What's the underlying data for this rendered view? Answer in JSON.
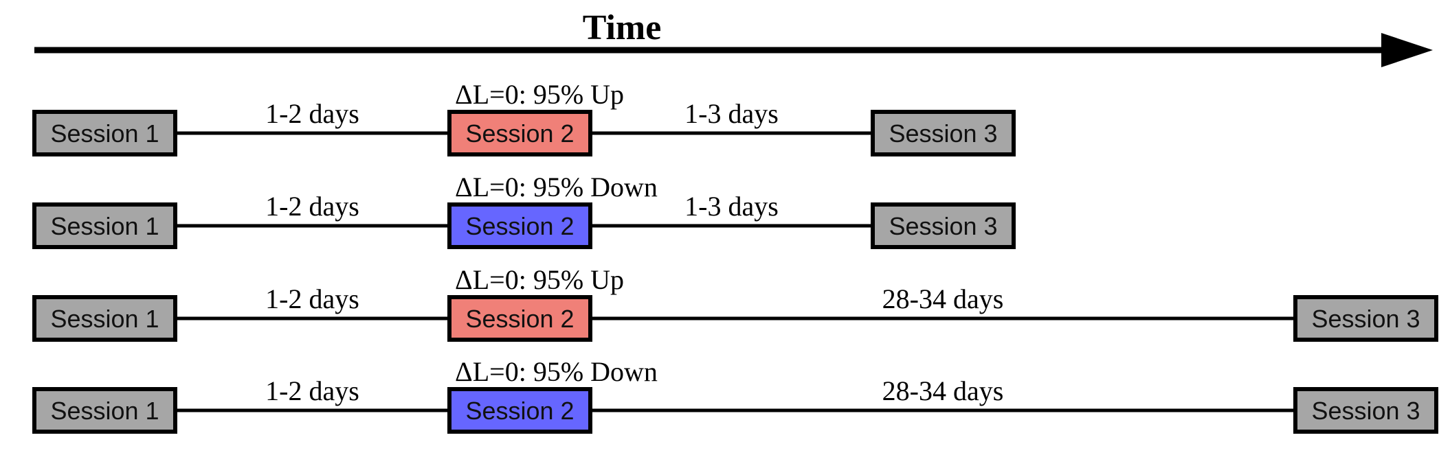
{
  "title": "Time",
  "colors": {
    "neutral": "#a6a6a6",
    "up": "#f08078",
    "down": "#6666ff"
  },
  "rows": [
    {
      "session1": "Session 1",
      "session2": "Session 2",
      "session3": "Session 3",
      "condition": "ΔL=0: 95% Up",
      "direction": "up",
      "interval1": "1-2 days",
      "interval2": "1-3 days",
      "schedule": "short"
    },
    {
      "session1": "Session 1",
      "session2": "Session 2",
      "session3": "Session 3",
      "condition": "ΔL=0: 95% Down",
      "direction": "down",
      "interval1": "1-2 days",
      "interval2": "1-3 days",
      "schedule": "short"
    },
    {
      "session1": "Session 1",
      "session2": "Session 2",
      "session3": "Session 3",
      "condition": "ΔL=0: 95% Up",
      "direction": "up",
      "interval1": "1-2 days",
      "interval2": "28-34 days",
      "schedule": "long"
    },
    {
      "session1": "Session 1",
      "session2": "Session 2",
      "session3": "Session 3",
      "condition": "ΔL=0: 95% Down",
      "direction": "down",
      "interval1": "1-2 days",
      "interval2": "28-34 days",
      "schedule": "long"
    }
  ]
}
